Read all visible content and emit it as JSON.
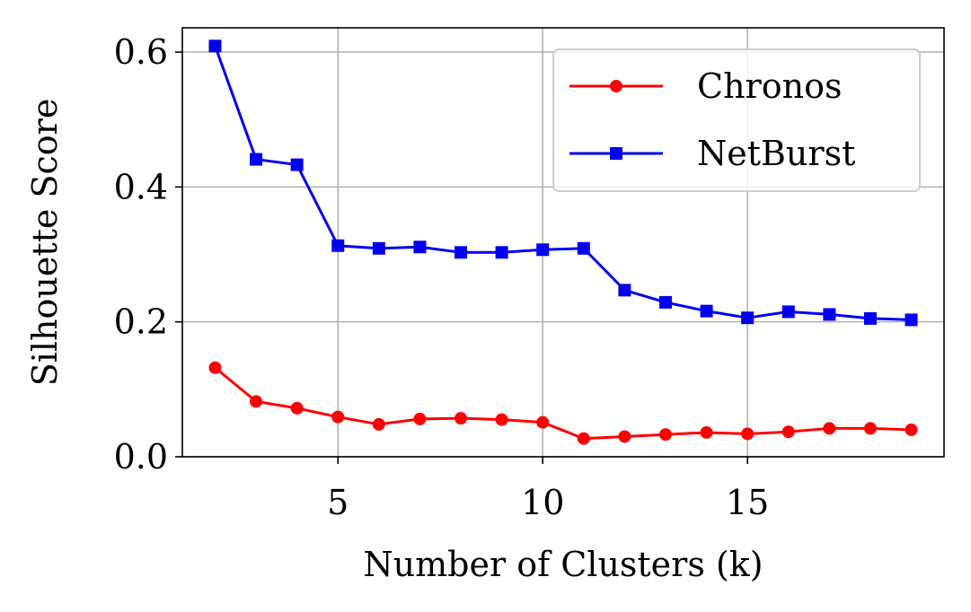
{
  "chart_data": {
    "type": "line",
    "xlabel": "Number of Clusters (k)",
    "ylabel": "Silhouette Score",
    "xlim": [
      1.2,
      19.8
    ],
    "ylim": [
      0.0,
      0.636
    ],
    "xticks": [
      5,
      10,
      15
    ],
    "yticks": [
      0.0,
      0.2,
      0.4,
      0.6
    ],
    "xtick_labels": [
      "5",
      "10",
      "15"
    ],
    "ytick_labels": [
      "0.0",
      "0.2",
      "0.4",
      "0.6"
    ],
    "grid": true,
    "legend_position": "top-right",
    "x": [
      2,
      3,
      4,
      5,
      6,
      7,
      8,
      9,
      10,
      11,
      12,
      13,
      14,
      15,
      16,
      17,
      18,
      19
    ],
    "series": [
      {
        "name": "Chronos",
        "color": "#ff0000",
        "marker": "circle",
        "values": [
          0.132,
          0.082,
          0.072,
          0.059,
          0.048,
          0.056,
          0.057,
          0.055,
          0.051,
          0.027,
          0.03,
          0.033,
          0.036,
          0.034,
          0.037,
          0.042,
          0.042,
          0.04
        ]
      },
      {
        "name": "NetBurst",
        "color": "#0000ee",
        "marker": "square",
        "values": [
          0.609,
          0.441,
          0.433,
          0.313,
          0.309,
          0.311,
          0.303,
          0.303,
          0.307,
          0.309,
          0.247,
          0.229,
          0.216,
          0.206,
          0.215,
          0.211,
          0.205,
          0.203
        ]
      }
    ]
  }
}
